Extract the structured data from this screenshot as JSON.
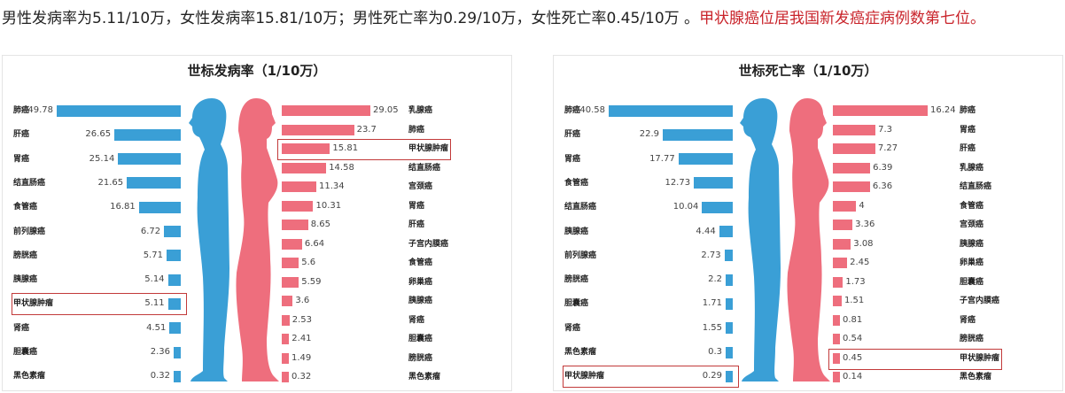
{
  "headline": {
    "text": "男性发病率为5.11/10万，女性发病率15.81/10万；男性死亡率为0.29/10万，女性死亡率0.45/10万 。",
    "highlight": "甲状腺癌位居我国新发癌症病例数第七位。",
    "highlight_color": "#c9242b"
  },
  "chart_data": [
    {
      "type": "bar",
      "title": "世标发病率（1/10万）",
      "colors": {
        "male": "#3a9fd6",
        "female": "#ee6e7d",
        "highlight_box": "#c23a3a"
      },
      "male": [
        {
          "label": "肺癌",
          "value": 49.78
        },
        {
          "label": "肝癌",
          "value": 26.65
        },
        {
          "label": "胃癌",
          "value": 25.14
        },
        {
          "label": "结直肠癌",
          "value": 21.65
        },
        {
          "label": "食管癌",
          "value": 16.81
        },
        {
          "label": "前列腺癌",
          "value": 6.72
        },
        {
          "label": "膀胱癌",
          "value": 5.71
        },
        {
          "label": "胰腺癌",
          "value": 5.14
        },
        {
          "label": "甲状腺肿瘤",
          "value": 5.11,
          "highlight": true
        },
        {
          "label": "肾癌",
          "value": 4.51
        },
        {
          "label": "胆囊癌",
          "value": 2.36
        },
        {
          "label": "黑色素瘤",
          "value": 0.32
        }
      ],
      "female": [
        {
          "label": "乳腺癌",
          "value": 29.05
        },
        {
          "label": "肺癌",
          "value": 23.7
        },
        {
          "label": "甲状腺肿瘤",
          "value": 15.81,
          "highlight": true
        },
        {
          "label": "结直肠癌",
          "value": 14.58
        },
        {
          "label": "宫颈癌",
          "value": 11.34
        },
        {
          "label": "胃癌",
          "value": 10.31
        },
        {
          "label": "肝癌",
          "value": 8.65
        },
        {
          "label": "子宫内膜癌",
          "value": 6.64
        },
        {
          "label": "食管癌",
          "value": 5.6
        },
        {
          "label": "卵巢癌",
          "value": 5.59
        },
        {
          "label": "胰腺癌",
          "value": 3.6
        },
        {
          "label": "肾癌",
          "value": 2.53
        },
        {
          "label": "胆囊癌",
          "value": 2.41
        },
        {
          "label": "膀胱癌",
          "value": 1.49
        },
        {
          "label": "黑色素瘤",
          "value": 0.32
        }
      ]
    },
    {
      "type": "bar",
      "title": "世标死亡率（1/10万）",
      "colors": {
        "male": "#3a9fd6",
        "female": "#ee6e7d",
        "highlight_box": "#c23a3a"
      },
      "male": [
        {
          "label": "肺癌",
          "value": 40.58
        },
        {
          "label": "肝癌",
          "value": 22.9
        },
        {
          "label": "胃癌",
          "value": 17.77
        },
        {
          "label": "食管癌",
          "value": 12.73
        },
        {
          "label": "结直肠癌",
          "value": 10.04
        },
        {
          "label": "胰腺癌",
          "value": 4.44
        },
        {
          "label": "前列腺癌",
          "value": 2.73
        },
        {
          "label": "膀胱癌",
          "value": 2.2
        },
        {
          "label": "胆囊癌",
          "value": 1.71
        },
        {
          "label": "肾癌",
          "value": 1.55
        },
        {
          "label": "黑色素瘤",
          "value": 0.3
        },
        {
          "label": "甲状腺肿瘤",
          "value": 0.29,
          "highlight": true
        }
      ],
      "female": [
        {
          "label": "肺癌",
          "value": 16.24
        },
        {
          "label": "胃癌",
          "value": 7.3
        },
        {
          "label": "肝癌",
          "value": 7.27
        },
        {
          "label": "乳腺癌",
          "value": 6.39
        },
        {
          "label": "结直肠癌",
          "value": 6.36
        },
        {
          "label": "食管癌",
          "value": 4
        },
        {
          "label": "宫颈癌",
          "value": 3.36
        },
        {
          "label": "胰腺癌",
          "value": 3.08
        },
        {
          "label": "卵巢癌",
          "value": 2.45
        },
        {
          "label": "胆囊癌",
          "value": 1.73
        },
        {
          "label": "子宫内膜癌",
          "value": 1.51
        },
        {
          "label": "肾癌",
          "value": 0.81
        },
        {
          "label": "膀胱癌",
          "value": 0.54
        },
        {
          "label": "甲状腺肿瘤",
          "value": 0.45,
          "highlight": true
        },
        {
          "label": "黑色素瘤",
          "value": 0.14
        }
      ]
    }
  ]
}
